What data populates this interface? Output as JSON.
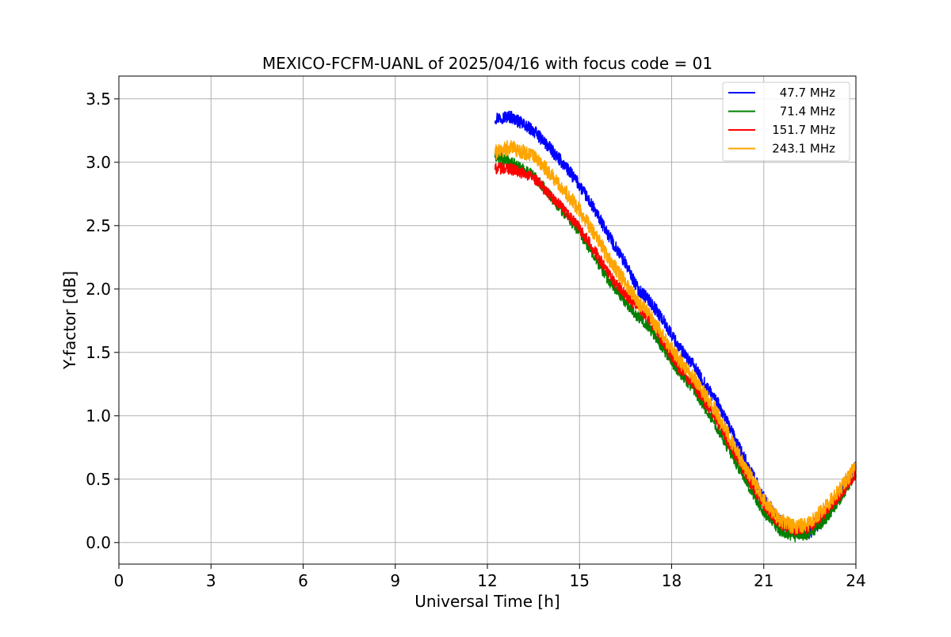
{
  "chart_data": {
    "type": "line",
    "title": "MEXICO-FCFM-UANL of 2025/04/16 with focus code = 01",
    "xlabel": "Universal Time [h]",
    "ylabel": "Y-factor [dB]",
    "xlim": [
      0,
      24
    ],
    "ylim": [
      -0.17,
      3.68
    ],
    "xticks": [
      0,
      3,
      6,
      9,
      12,
      15,
      18,
      21,
      24
    ],
    "xtick_labels": [
      "0",
      "3",
      "6",
      "9",
      "12",
      "15",
      "18",
      "21",
      "24"
    ],
    "yticks": [
      0.0,
      0.5,
      1.0,
      1.5,
      2.0,
      2.5,
      3.0,
      3.5
    ],
    "ytick_labels": [
      "0.0",
      "0.5",
      "1.0",
      "1.5",
      "2.0",
      "2.5",
      "3.0",
      "3.5"
    ],
    "grid": true,
    "legend_position": "top-right",
    "series": [
      {
        "name": "47.7 MHz",
        "color": "#0000ff",
        "noise": 0.05,
        "x": [
          12.25,
          12.75,
          13.5,
          14.0,
          14.5,
          15.0,
          15.5,
          16.0,
          16.5,
          16.9,
          17.2,
          17.6,
          17.9,
          18.3,
          18.7,
          19.0,
          19.5,
          20.0,
          20.5,
          21.0,
          21.5,
          22.0,
          22.5,
          23.0,
          23.5,
          24.0
        ],
        "y": [
          3.35,
          3.36,
          3.25,
          3.12,
          2.98,
          2.82,
          2.62,
          2.4,
          2.2,
          2.0,
          1.93,
          1.8,
          1.68,
          1.52,
          1.4,
          1.28,
          1.1,
          0.85,
          0.6,
          0.35,
          0.18,
          0.08,
          0.08,
          0.2,
          0.38,
          0.62
        ]
      },
      {
        "name": "71.4 MHz",
        "color": "#008000",
        "noise": 0.045,
        "x": [
          12.25,
          12.75,
          13.5,
          14.0,
          14.5,
          15.0,
          15.5,
          16.0,
          16.5,
          16.9,
          17.2,
          17.6,
          17.9,
          18.3,
          18.7,
          19.0,
          19.5,
          20.0,
          20.5,
          21.0,
          21.5,
          22.0,
          22.5,
          23.0,
          23.5,
          24.0
        ],
        "y": [
          3.05,
          3.0,
          2.9,
          2.75,
          2.6,
          2.45,
          2.25,
          2.05,
          1.9,
          1.78,
          1.72,
          1.58,
          1.46,
          1.33,
          1.22,
          1.1,
          0.9,
          0.67,
          0.45,
          0.24,
          0.1,
          0.05,
          0.07,
          0.18,
          0.35,
          0.55
        ]
      },
      {
        "name": "151.7 MHz",
        "color": "#ff0000",
        "noise": 0.045,
        "x": [
          12.25,
          12.75,
          13.5,
          14.0,
          14.5,
          15.0,
          15.5,
          16.0,
          16.5,
          16.9,
          17.2,
          17.6,
          17.9,
          18.3,
          18.7,
          19.0,
          19.5,
          20.0,
          20.5,
          21.0,
          21.5,
          22.0,
          22.5,
          23.0,
          23.5,
          24.0
        ],
        "y": [
          2.95,
          2.95,
          2.88,
          2.75,
          2.62,
          2.48,
          2.3,
          2.1,
          1.95,
          1.85,
          1.78,
          1.63,
          1.5,
          1.36,
          1.25,
          1.14,
          0.95,
          0.72,
          0.5,
          0.3,
          0.15,
          0.1,
          0.12,
          0.24,
          0.38,
          0.55
        ]
      },
      {
        "name": "243.1 MHz",
        "color": "#ffa500",
        "noise": 0.06,
        "x": [
          12.25,
          12.75,
          13.5,
          14.0,
          14.5,
          15.0,
          15.5,
          16.0,
          16.5,
          16.9,
          17.2,
          17.6,
          17.9,
          18.3,
          18.7,
          19.0,
          19.5,
          20.0,
          20.5,
          21.0,
          21.5,
          22.0,
          22.5,
          23.0,
          23.5,
          24.0
        ],
        "y": [
          3.08,
          3.12,
          3.05,
          2.92,
          2.78,
          2.62,
          2.43,
          2.22,
          2.05,
          1.9,
          1.82,
          1.68,
          1.56,
          1.42,
          1.31,
          1.2,
          1.01,
          0.78,
          0.55,
          0.33,
          0.18,
          0.12,
          0.15,
          0.28,
          0.43,
          0.6
        ]
      }
    ]
  }
}
